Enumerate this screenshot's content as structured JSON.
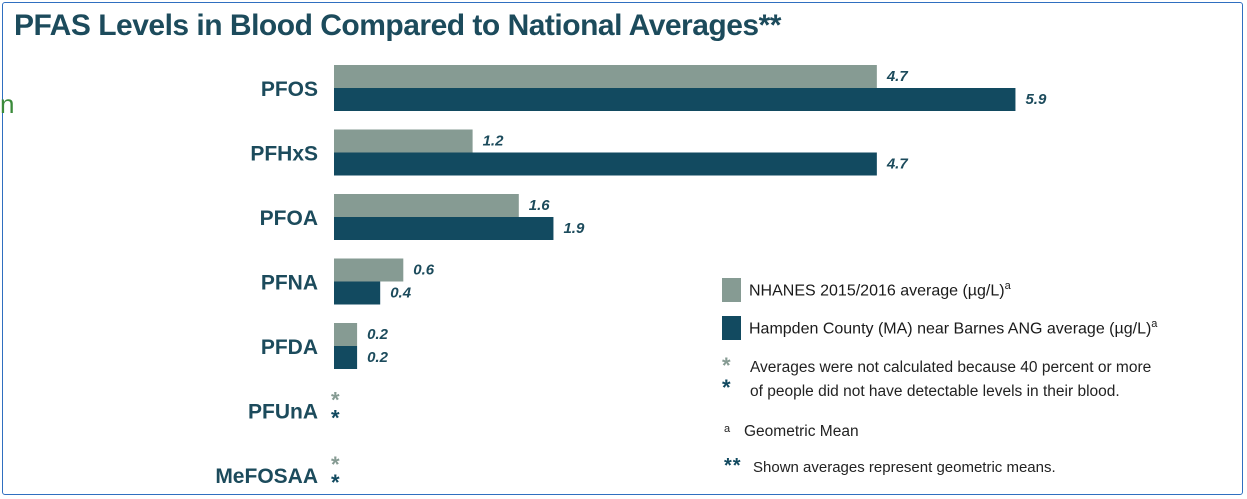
{
  "chart_data": {
    "type": "bar",
    "title": "PFAS Levels in Blood Compared to National Averages**",
    "categories": [
      "PFOS",
      "PFHxS",
      "PFOA",
      "PFNA",
      "PFDA",
      "PFUnA",
      "MeFOSAA"
    ],
    "series": [
      {
        "name": "NHANES 2015/2016 average (µg/L)",
        "values": [
          4.7,
          1.2,
          1.6,
          0.6,
          0.2,
          null,
          null
        ],
        "labels": [
          "4.7",
          "1.2",
          "1.6",
          "0.6",
          "0.2",
          "",
          ""
        ]
      },
      {
        "name": "Hampden County (MA) near Barnes ANG  average (µg/L)",
        "values": [
          5.9,
          4.7,
          1.9,
          0.4,
          0.2,
          null,
          null
        ],
        "labels": [
          "5.9",
          "4.7",
          "1.9",
          "0.4",
          "0.2",
          "",
          ""
        ]
      }
    ],
    "not_calculated_marker": "*",
    "not_calculated_categories": [
      "PFUnA",
      "MeFOSAA"
    ],
    "orientation": "horizontal",
    "xlim": [
      0,
      6
    ],
    "grid": false,
    "legend_position": "bottom-right",
    "colors": {
      "nhanes": "#869b93",
      "hampden": "#124a60",
      "title": "#1c4b5c"
    }
  },
  "legend": {
    "nhanes_label": "NHANES 2015/2016 average (µg/L)",
    "nhanes_sup": "a",
    "hampden_label": "Hampden County (MA) near Barnes ANG  average (µg/L)",
    "hampden_sup": "a",
    "note_star": "*",
    "note_line1": "Averages were not calculated because 40 percent or more",
    "note_line2": "of people did not have detectable levels in their blood.",
    "geo_sup": "a",
    "geo_text": "Geometric Mean",
    "double_star": "**",
    "double_star_text": "Shown averages represent geometric means."
  },
  "edge_mark": "n"
}
